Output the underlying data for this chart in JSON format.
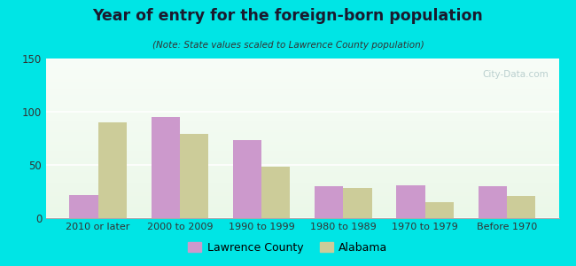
{
  "title": "Year of entry for the foreign-born population",
  "subtitle": "(Note: State values scaled to Lawrence County population)",
  "categories": [
    "2010 or later",
    "2000 to 2009",
    "1990 to 1999",
    "1980 to 1989",
    "1970 to 1979",
    "Before 1970"
  ],
  "lawrence_county": [
    22,
    95,
    73,
    30,
    31,
    30
  ],
  "alabama": [
    90,
    79,
    48,
    28,
    15,
    21
  ],
  "lawrence_color": "#cc99cc",
  "alabama_color": "#cccc99",
  "background_color": "#00e5e5",
  "ylim": [
    0,
    150
  ],
  "yticks": [
    0,
    50,
    100,
    150
  ],
  "bar_width": 0.35,
  "legend_labels": [
    "Lawrence County",
    "Alabama"
  ],
  "watermark": "City-Data.com"
}
